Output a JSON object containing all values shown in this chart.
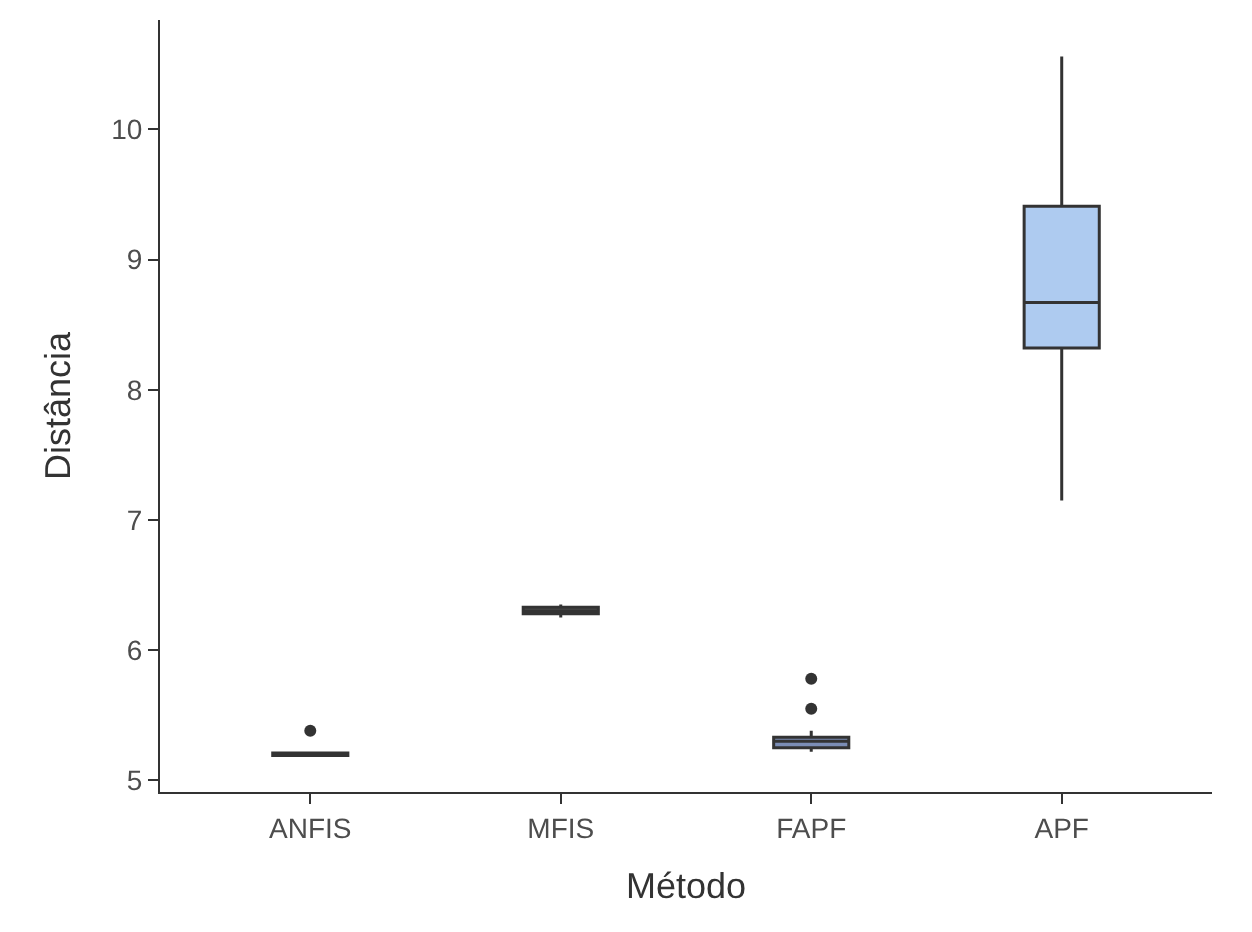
{
  "chart_data": {
    "type": "box",
    "xlabel": "Método",
    "ylabel": "Distância",
    "categories": [
      "ANFIS",
      "MFIS",
      "FAPF",
      "APF"
    ],
    "boxes": [
      {
        "low": 5.19,
        "q1": 5.19,
        "median": 5.2,
        "q3": 5.21,
        "high": 5.21,
        "outliers": [
          5.38
        ]
      },
      {
        "low": 6.25,
        "q1": 6.28,
        "median": 6.3,
        "q3": 6.33,
        "high": 6.35
      },
      {
        "low": 5.22,
        "q1": 5.25,
        "median": 5.3,
        "q3": 5.33,
        "high": 5.38,
        "outliers": [
          5.55,
          5.78
        ]
      },
      {
        "low": 7.15,
        "q1": 8.32,
        "median": 8.67,
        "q3": 9.41,
        "high": 10.56
      }
    ],
    "colors": [
      "#404040",
      "#505050",
      "#7b8db5",
      "#aecbf0"
    ],
    "ylim": [
      4.91,
      10.84
    ],
    "yticks": [
      5,
      6,
      7,
      8,
      9,
      10
    ]
  }
}
